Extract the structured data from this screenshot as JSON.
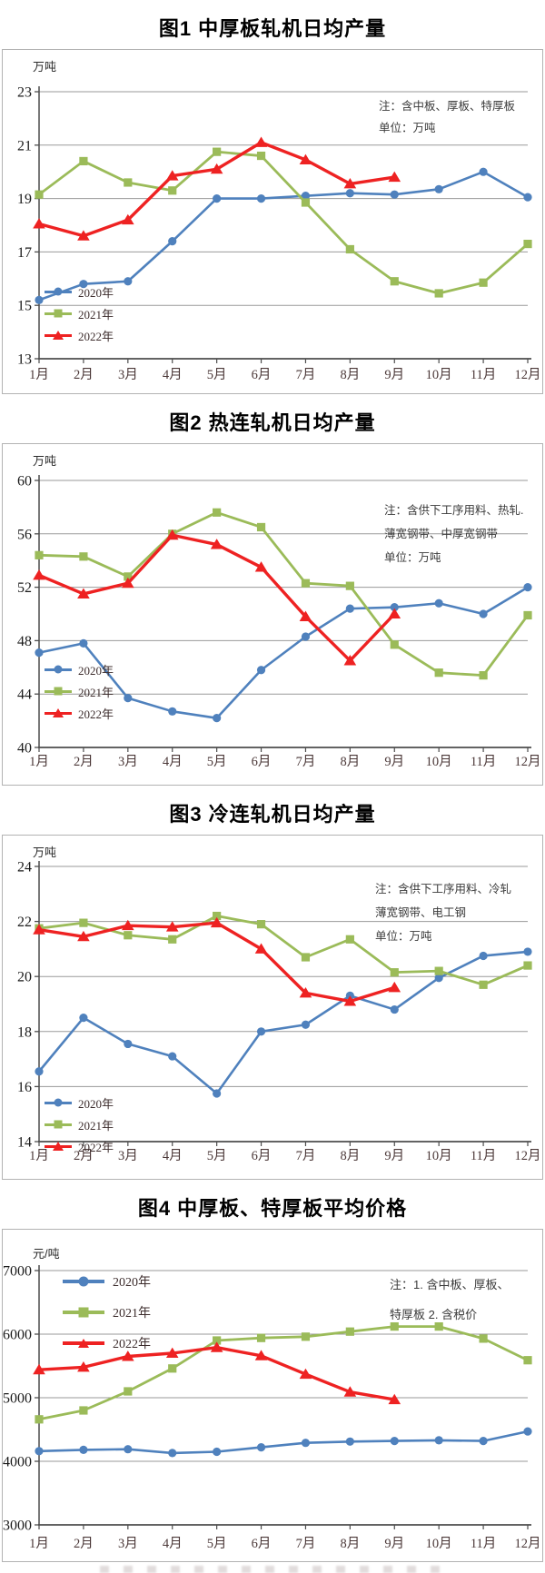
{
  "page": {
    "background": "#ffffff"
  },
  "series_meta": [
    {
      "name": "2020年",
      "color": "#4f81bd",
      "marker": "circle"
    },
    {
      "name": "2021年",
      "color": "#9bbb59",
      "marker": "square"
    },
    {
      "name": "2022年",
      "color": "#ee2222",
      "marker": "triangle"
    }
  ],
  "charts": [
    {
      "title": "图1 中厚板轧机日均产量",
      "unit_label": "万吨",
      "note_lines": [
        "注：含中板、厚板、特厚板",
        "单位：万吨"
      ],
      "chart_data": {
        "type": "line",
        "categories": [
          "1月",
          "2月",
          "3月",
          "4月",
          "5月",
          "6月",
          "7月",
          "8月",
          "9月",
          "10月",
          "11月",
          "12月"
        ],
        "ylim": [
          13,
          23
        ],
        "ytick_step": 2,
        "grid": true,
        "legend_position": "bottom-left",
        "ylabel": "万吨",
        "series": [
          {
            "name": "2020年",
            "values": [
              15.2,
              15.8,
              15.9,
              17.4,
              19.0,
              19.0,
              19.1,
              19.2,
              19.15,
              19.35,
              20.0,
              19.05
            ]
          },
          {
            "name": "2021年",
            "values": [
              19.15,
              20.4,
              19.6,
              19.3,
              20.75,
              20.6,
              18.85,
              17.1,
              15.9,
              15.45,
              15.85,
              17.3
            ]
          },
          {
            "name": "2022年",
            "values": [
              18.05,
              17.6,
              18.2,
              19.85,
              20.1,
              21.1,
              20.45,
              19.55,
              19.8,
              null,
              null,
              null
            ]
          }
        ]
      }
    },
    {
      "title": "图2 热连轧机日均产量",
      "unit_label": "万吨",
      "note_lines": [
        "注：含供下工序用料、热轧.",
        "薄宽钢带、中厚宽钢带",
        "单位：万吨"
      ],
      "chart_data": {
        "type": "line",
        "categories": [
          "1月",
          "2月",
          "3月",
          "4月",
          "5月",
          "6月",
          "7月",
          "8月",
          "9月",
          "10月",
          "11月",
          "12月"
        ],
        "ylim": [
          40,
          60
        ],
        "ytick_step": 4,
        "grid": true,
        "legend_position": "bottom-left",
        "ylabel": "万吨",
        "series": [
          {
            "name": "2020年",
            "values": [
              47.1,
              47.8,
              43.7,
              42.7,
              42.2,
              45.8,
              48.3,
              50.4,
              50.5,
              50.8,
              50.0,
              52.0
            ]
          },
          {
            "name": "2021年",
            "values": [
              54.4,
              54.3,
              52.8,
              56.0,
              57.6,
              56.5,
              52.3,
              52.1,
              47.7,
              45.6,
              45.4,
              49.9
            ]
          },
          {
            "name": "2022年",
            "values": [
              52.9,
              51.5,
              52.3,
              55.9,
              55.2,
              53.5,
              49.8,
              46.5,
              50.0,
              null,
              null,
              null
            ]
          }
        ]
      }
    },
    {
      "title": "图3 冷连轧机日均产量",
      "unit_label": "万吨",
      "note_lines": [
        "注：含供下工序用料、冷轧",
        "薄宽钢带、电工钢",
        "单位：万吨"
      ],
      "chart_data": {
        "type": "line",
        "categories": [
          "1月",
          "2月",
          "3月",
          "4月",
          "5月",
          "6月",
          "7月",
          "8月",
          "9月",
          "10月",
          "11月",
          "12月"
        ],
        "ylim": [
          14,
          24
        ],
        "ytick_step": 2,
        "grid": true,
        "legend_position": "bottom-left",
        "ylabel": "万吨",
        "series": [
          {
            "name": "2020年",
            "values": [
              16.55,
              18.5,
              17.55,
              17.1,
              15.75,
              18.0,
              18.25,
              19.3,
              18.8,
              19.95,
              20.75,
              20.9
            ]
          },
          {
            "name": "2021年",
            "values": [
              21.75,
              21.95,
              21.5,
              21.35,
              22.2,
              21.9,
              20.7,
              21.35,
              20.15,
              20.2,
              19.7,
              20.4
            ]
          },
          {
            "name": "2022年",
            "values": [
              21.7,
              21.45,
              21.85,
              21.8,
              21.95,
              21.0,
              19.4,
              19.1,
              19.6,
              null,
              null,
              null
            ]
          }
        ]
      }
    },
    {
      "title": "图4 中厚板、特厚板平均价格",
      "unit_label": "元/吨",
      "note_lines": [
        "注：1. 含中板、厚板、",
        "特厚板  2. 含税价"
      ],
      "chart_data": {
        "type": "line",
        "categories": [
          "1月",
          "2月",
          "3月",
          "4月",
          "5月",
          "6月",
          "7月",
          "8月",
          "9月",
          "10月",
          "11月",
          "12月"
        ],
        "ylim": [
          3000,
          7000
        ],
        "ytick_step": 1000,
        "grid": true,
        "legend_position": "top-left",
        "ylabel": "元/吨",
        "series": [
          {
            "name": "2020年",
            "values": [
              4160,
              4180,
              4190,
              4130,
              4150,
              4220,
              4290,
              4310,
              4320,
              4330,
              4320,
              4470
            ]
          },
          {
            "name": "2021年",
            "values": [
              4660,
              4800,
              5100,
              5460,
              5900,
              5940,
              5960,
              6040,
              6120,
              6120,
              5930,
              5590
            ]
          },
          {
            "name": "2022年",
            "values": [
              5440,
              5480,
              5650,
              5700,
              5790,
              5660,
              5370,
              5090,
              4970,
              null,
              null,
              null
            ]
          }
        ]
      }
    }
  ]
}
